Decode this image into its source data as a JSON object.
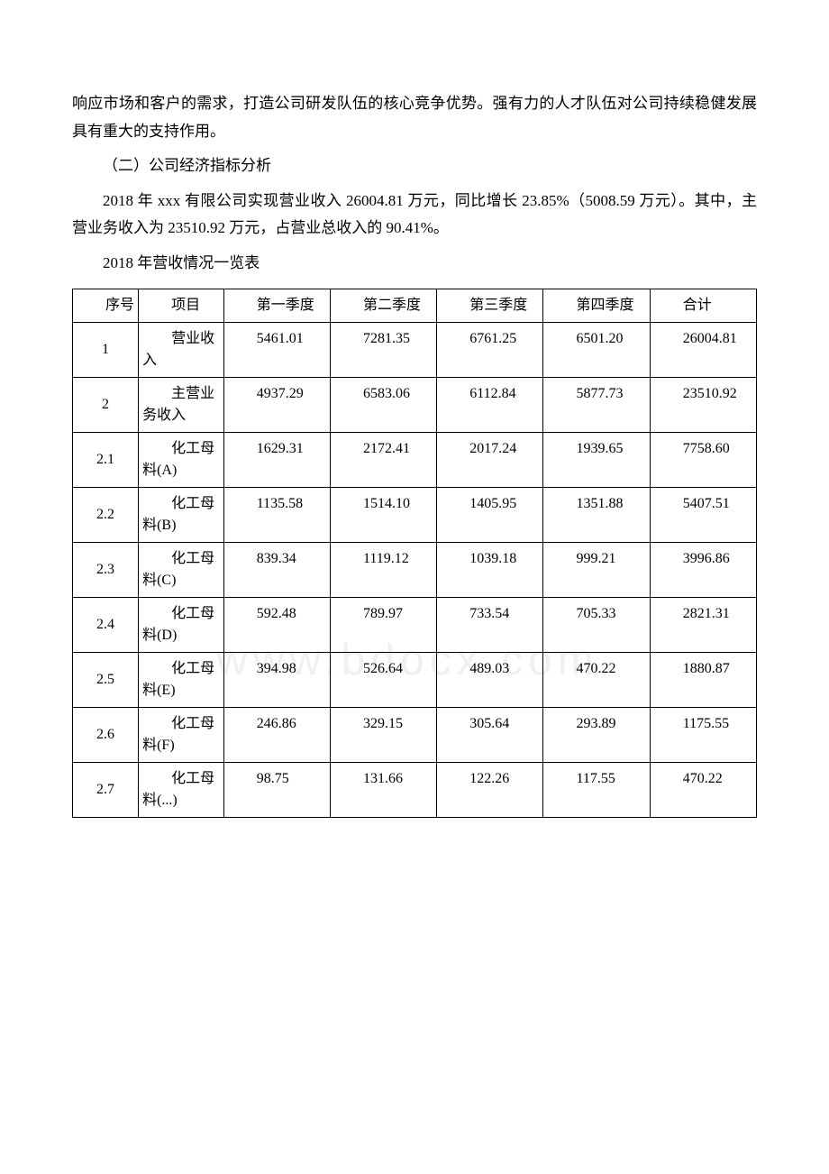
{
  "paragraphs": {
    "p1": "响应市场和客户的需求，打造公司研发队伍的核心竞争优势。强有力的人才队伍对公司持续稳健发展具有重大的支持作用。",
    "p2": "（二）公司经济指标分析",
    "p3": "2018 年 xxx 有限公司实现营业收入 26004.81 万元，同比增长 23.85%（5008.59 万元）。其中，主营业务收入为 23510.92 万元，占营业总收入的 90.41%。",
    "p4": "2018 年营收情况一览表"
  },
  "table": {
    "headers": {
      "h1": "序号",
      "h2": "项目",
      "h3": "第一季度",
      "h4": "第二季度",
      "h5": "第三季度",
      "h6": "第四季度",
      "h7": "合计"
    },
    "rows": [
      {
        "num": "1",
        "item": "营业收入",
        "q1": "5461.01",
        "q2": "7281.35",
        "q3": "6761.25",
        "q4": "6501.20",
        "total": "26004.81"
      },
      {
        "num": "2",
        "item": "主营业务收入",
        "q1": "4937.29",
        "q2": "6583.06",
        "q3": "6112.84",
        "q4": "5877.73",
        "total": "23510.92"
      },
      {
        "num": "2.1",
        "item": "化工母料(A)",
        "q1": "1629.31",
        "q2": "2172.41",
        "q3": "2017.24",
        "q4": "1939.65",
        "total": "7758.60"
      },
      {
        "num": "2.2",
        "item": "化工母料(B)",
        "q1": "1135.58",
        "q2": "1514.10",
        "q3": "1405.95",
        "q4": "1351.88",
        "total": "5407.51"
      },
      {
        "num": "2.3",
        "item": "化工母料(C)",
        "q1": "839.34",
        "q2": "1119.12",
        "q3": "1039.18",
        "q4": "999.21",
        "total": "3996.86"
      },
      {
        "num": "2.4",
        "item": "化工母料(D)",
        "q1": "592.48",
        "q2": "789.97",
        "q3": "733.54",
        "q4": "705.33",
        "total": "2821.31"
      },
      {
        "num": "2.5",
        "item": "化工母料(E)",
        "q1": "394.98",
        "q2": "526.64",
        "q3": "489.03",
        "q4": "470.22",
        "total": "1880.87"
      },
      {
        "num": "2.6",
        "item": "化工母料(F)",
        "q1": "246.86",
        "q2": "329.15",
        "q3": "305.64",
        "q4": "293.89",
        "total": "1175.55"
      },
      {
        "num": "2.7",
        "item": "化工母料(...)",
        "q1": "98.75",
        "q2": "131.66",
        "q3": "122.26",
        "q4": "117.55",
        "total": "470.22"
      }
    ]
  },
  "watermark": "www.bdocx.com",
  "colors": {
    "text": "#000000",
    "background": "#ffffff",
    "border": "#000000",
    "watermark": "#f0f0f0"
  }
}
